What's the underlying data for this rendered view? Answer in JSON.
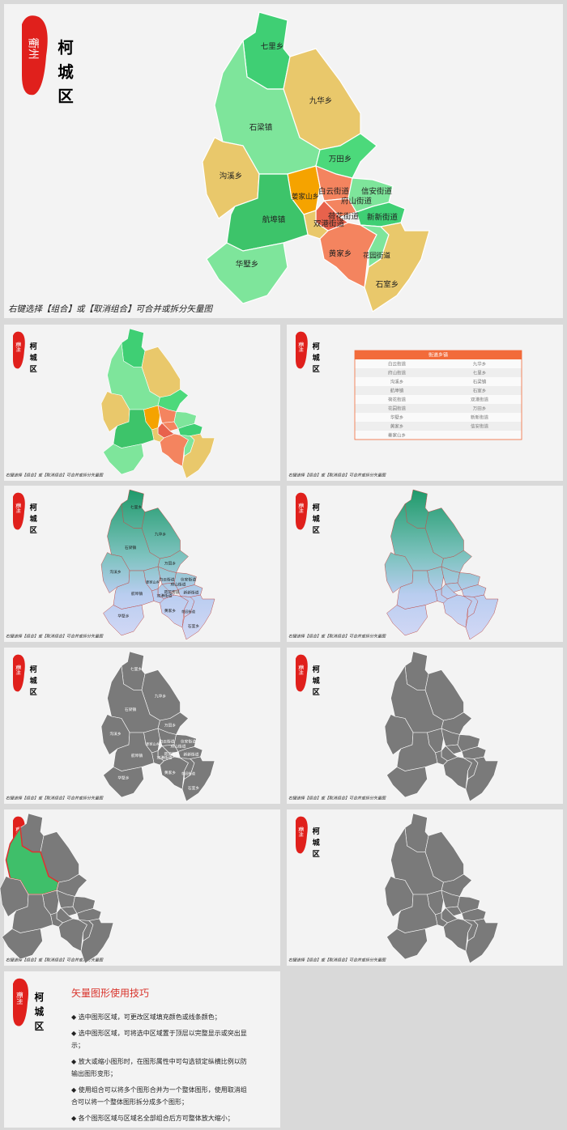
{
  "logo": "衢州",
  "title": "柯城区",
  "caption": "右键选择【组合】或【取消组合】可合并或拆分矢量图",
  "regions": [
    "七里乡",
    "九华乡",
    "石梁镇",
    "沟溪乡",
    "万田乡",
    "姜家山乡",
    "白云街道",
    "府山街道",
    "荷花街道",
    "信安街道",
    "新新街道",
    "双港街道",
    "航埠镇",
    "黄家乡",
    "花园街道",
    "石室乡",
    "华墅乡"
  ],
  "table": {
    "header": "街道乡镇",
    "rows": [
      [
        "白云街道",
        "九华乡"
      ],
      [
        "府山街道",
        "七里乡"
      ],
      [
        "沟溪乡",
        "石梁镇"
      ],
      [
        "航埠镇",
        "石室乡"
      ],
      [
        "荷花街道",
        "双港街道"
      ],
      [
        "花园街道",
        "万田乡"
      ],
      [
        "华墅乡",
        "新新街道"
      ],
      [
        "黄家乡",
        "信安街道"
      ],
      [
        "姜家山乡"
      ]
    ]
  },
  "tips": {
    "title": "矢量图形使用技巧",
    "items": [
      "◆ 选中图形区域，可更改区域填充颜色或线条颜色；",
      "◆ 选中图形区域，可将选中区域置于顶层以完整显示或突出显示；",
      "◆ 放大或缩小图形时，在图形属性中可勾选锁定纵横比例以防输出图形变形；",
      "◆ 使用组合可以将多个图形合并为一个整体图形，使用取消组合可以将一个整体图形拆分成多个图形；",
      "◆ 各个图形区域与区域名全部组合后方可整体放大缩小；"
    ]
  }
}
